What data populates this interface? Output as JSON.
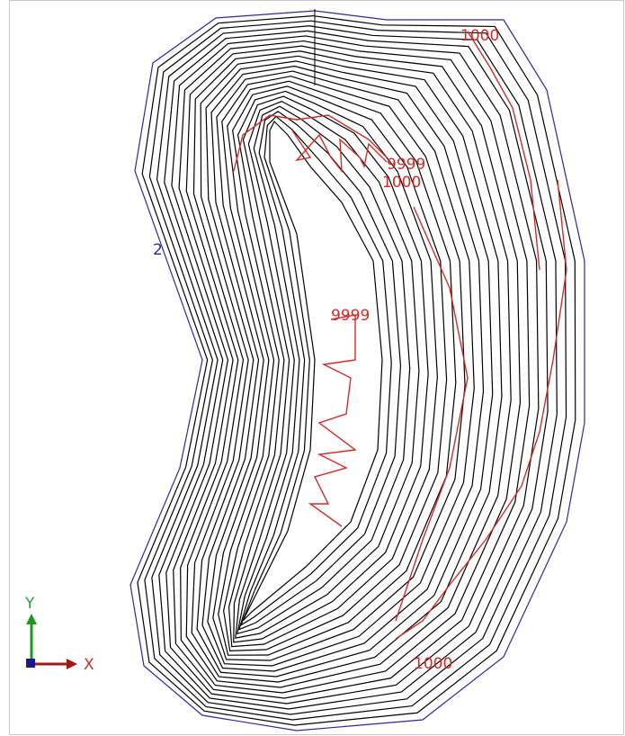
{
  "viewport": {
    "contour_labels": [
      "1000",
      "9999",
      "1000",
      "9999",
      "1000"
    ],
    "boundary_label": "2",
    "axes": {
      "y": "Y",
      "x": "X"
    }
  }
}
